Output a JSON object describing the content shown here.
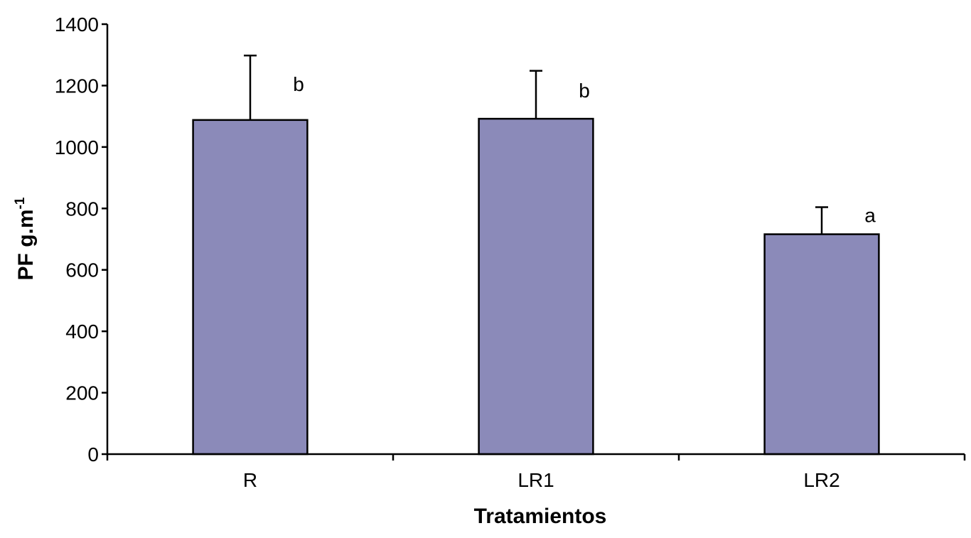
{
  "chart_data": {
    "type": "bar",
    "categories": [
      "R",
      "LR1",
      "LR2"
    ],
    "values": [
      1088,
      1092,
      716
    ],
    "error_upper": [
      1298,
      1248,
      804
    ],
    "significance_letters": [
      "b",
      "b",
      "a"
    ],
    "title": "",
    "xlabel": "Tratamientos",
    "ylabel_main": "PF g.m",
    "ylabel_sup": "-1",
    "ylim": [
      0,
      1400
    ],
    "yticks": [
      "0",
      "200",
      "400",
      "600",
      "800",
      "1000",
      "1200",
      "1400"
    ],
    "grid": false,
    "legend": "none",
    "bar_color": "#8b8ab9",
    "outline_color": "#000000"
  }
}
